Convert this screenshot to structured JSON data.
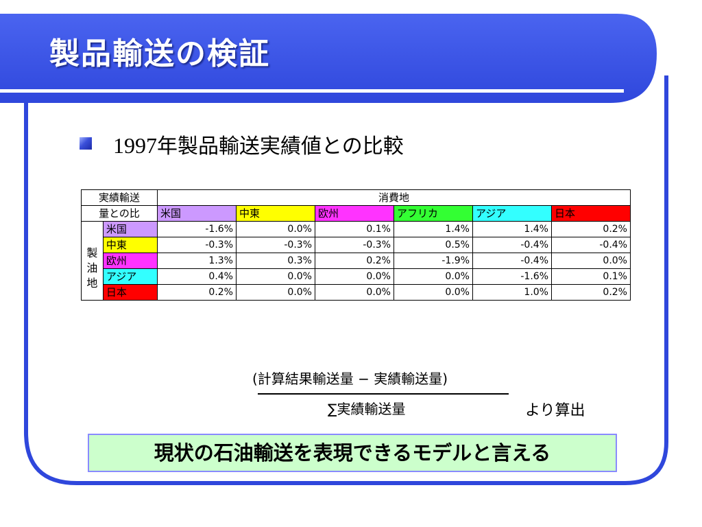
{
  "slide": {
    "title": "製品輸送の検証",
    "subtitle_year": "1997",
    "subtitle_rest": "年製品輸送実績値との比較",
    "accent_color": "#3b55e6",
    "bullet_icon": "square-bullet-icon"
  },
  "table": {
    "corner_line1": "実績輸送",
    "corner_line2": "量との比",
    "consumption_header": "消費地",
    "refinery_header_chars": [
      "製",
      "油",
      "地"
    ],
    "columns": [
      {
        "label": "米国",
        "color": "#cc99ff"
      },
      {
        "label": "中東",
        "color": "#ffff00"
      },
      {
        "label": "欧州",
        "color": "#ff33ff"
      },
      {
        "label": "アフリカ",
        "color": "#33ff33"
      },
      {
        "label": "アジア",
        "color": "#33ffff"
      },
      {
        "label": "日本",
        "color": "#ff0000"
      }
    ],
    "rows": [
      {
        "label": "米国",
        "color": "#cc99ff",
        "values": [
          "-1.6%",
          "0.0%",
          "0.1%",
          "1.4%",
          "1.4%",
          "0.2%"
        ]
      },
      {
        "label": "中東",
        "color": "#ffff00",
        "values": [
          "-0.3%",
          "-0.3%",
          "-0.3%",
          "0.5%",
          "-0.4%",
          "-0.4%"
        ]
      },
      {
        "label": "欧州",
        "color": "#ff33ff",
        "values": [
          "1.3%",
          "0.3%",
          "0.2%",
          "-1.9%",
          "-0.4%",
          "0.0%"
        ]
      },
      {
        "label": "アジア",
        "color": "#33ffff",
        "values": [
          "0.4%",
          "0.0%",
          "0.0%",
          "0.0%",
          "-1.6%",
          "0.1%"
        ]
      },
      {
        "label": "日本",
        "color": "#ff0000",
        "values": [
          "0.2%",
          "0.0%",
          "0.0%",
          "0.0%",
          "1.0%",
          "0.2%"
        ]
      }
    ]
  },
  "formula": {
    "numerator": "(計算結果輸送量 − 実績輸送量)",
    "denominator": "∑実績輸送量",
    "suffix": "より算出"
  },
  "conclusion": "現状の石油輸送を表現できるモデルと言える"
}
